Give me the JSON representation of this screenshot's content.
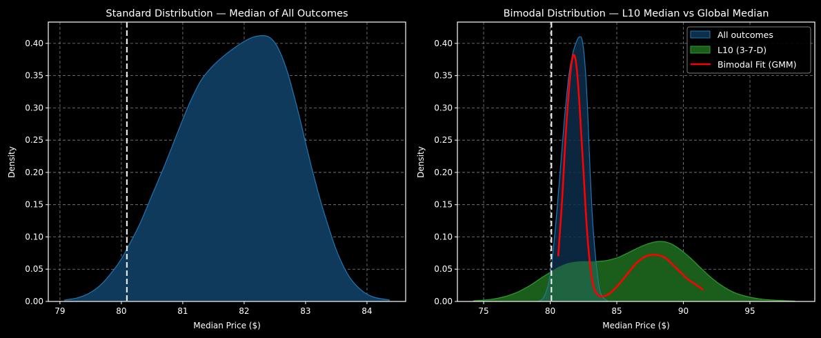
{
  "chart_data": [
    {
      "type": "area",
      "title": "Standard Distribution — Median of All Outcomes",
      "xlabel": "Median Price ($)",
      "ylabel": "Density",
      "xlim": [
        78.81,
        84.63
      ],
      "ylim": [
        0,
        0.433
      ],
      "xticks": [
        "79",
        "80",
        "81",
        "82",
        "83",
        "84"
      ],
      "xtick_values": [
        79,
        80,
        81,
        82,
        83,
        84
      ],
      "yticks": [
        "0.00",
        "0.05",
        "0.10",
        "0.15",
        "0.20",
        "0.25",
        "0.30",
        "0.35",
        "0.40"
      ],
      "ytick_values": [
        0,
        0.05,
        0.1,
        0.15,
        0.2,
        0.25,
        0.3,
        0.35,
        0.4
      ],
      "grid": true,
      "vline": 80.09,
      "series": [
        {
          "name": "All outcomes",
          "color": "#1f77b4",
          "x": [
            79.07,
            79.3,
            79.5,
            79.7,
            79.9,
            80.0,
            80.1,
            80.3,
            80.5,
            80.7,
            80.9,
            81.1,
            81.3,
            81.5,
            81.7,
            81.9,
            82.0,
            82.1,
            82.2,
            82.3,
            82.4,
            82.5,
            82.6,
            82.7,
            82.8,
            82.9,
            83.0,
            83.1,
            83.2,
            83.3,
            83.5,
            83.7,
            83.9,
            84.1,
            84.37
          ],
          "y": [
            0.002,
            0.006,
            0.014,
            0.029,
            0.052,
            0.066,
            0.083,
            0.12,
            0.165,
            0.21,
            0.258,
            0.305,
            0.343,
            0.366,
            0.383,
            0.397,
            0.403,
            0.408,
            0.411,
            0.412,
            0.41,
            0.401,
            0.383,
            0.357,
            0.323,
            0.286,
            0.246,
            0.207,
            0.171,
            0.138,
            0.08,
            0.04,
            0.018,
            0.007,
            0.002
          ]
        }
      ]
    },
    {
      "type": "area",
      "title": "Bimodal Distribution — L10 Median vs Global Median",
      "xlabel": "Median Price ($)",
      "ylabel": "Density",
      "xlim": [
        73.03,
        99.87
      ],
      "ylim": [
        0,
        0.433
      ],
      "xticks": [
        "75",
        "80",
        "85",
        "90",
        "95"
      ],
      "xtick_values": [
        75,
        80,
        85,
        90,
        95
      ],
      "yticks": [
        "0.00",
        "0.05",
        "0.10",
        "0.15",
        "0.20",
        "0.25",
        "0.30",
        "0.35",
        "0.40"
      ],
      "ytick_values": [
        0,
        0.05,
        0.1,
        0.15,
        0.2,
        0.25,
        0.3,
        0.35,
        0.4
      ],
      "grid": true,
      "vline": 80.09,
      "legend_position": "top-right",
      "series": [
        {
          "name": "L10 (3-7-D)",
          "color": "#2ca02c",
          "fill": "#1b5e1b",
          "x": [
            74.2,
            75.5,
            76.5,
            77.5,
            78.5,
            79.3,
            80.0,
            80.7,
            81.5,
            82.3,
            83.0,
            83.7,
            84.4,
            85.2,
            86.0,
            86.8,
            87.6,
            88.3,
            89.0,
            89.8,
            90.6,
            91.4,
            92.2,
            93.0,
            93.8,
            94.7,
            95.7,
            96.8,
            98.4
          ],
          "y": [
            0.001,
            0.003,
            0.007,
            0.014,
            0.025,
            0.036,
            0.045,
            0.054,
            0.06,
            0.062,
            0.062,
            0.062,
            0.064,
            0.069,
            0.077,
            0.085,
            0.091,
            0.093,
            0.09,
            0.08,
            0.066,
            0.05,
            0.035,
            0.023,
            0.014,
            0.008,
            0.004,
            0.002,
            0.0005
          ]
        },
        {
          "name": "All outcomes",
          "color": "#1f77b4",
          "fill": "#0d2e4a",
          "x": [
            79.07,
            79.5,
            79.9,
            80.2,
            80.5,
            80.8,
            81.1,
            81.4,
            81.7,
            82.0,
            82.2,
            82.4,
            82.6,
            82.8,
            83.0,
            83.2,
            83.5,
            83.8,
            84.37
          ],
          "y": [
            0.0,
            0.006,
            0.03,
            0.075,
            0.14,
            0.215,
            0.29,
            0.35,
            0.385,
            0.404,
            0.41,
            0.405,
            0.37,
            0.3,
            0.2,
            0.12,
            0.05,
            0.012,
            0.0
          ]
        },
        {
          "name": "Bimodal Fit (GMM)",
          "color": "#ff0000",
          "x": [
            80.6,
            80.9,
            81.2,
            81.5,
            81.7,
            81.9,
            82.1,
            82.3,
            82.5,
            82.7,
            82.9,
            83.1,
            83.3,
            83.6,
            84.0,
            84.5,
            85.0,
            85.5,
            86.0,
            86.5,
            87.0,
            87.5,
            88.0,
            88.4,
            88.8,
            89.3,
            89.8,
            90.3,
            90.8,
            91.5
          ],
          "y": [
            0.07,
            0.16,
            0.27,
            0.35,
            0.38,
            0.375,
            0.335,
            0.27,
            0.2,
            0.13,
            0.075,
            0.04,
            0.02,
            0.01,
            0.008,
            0.013,
            0.023,
            0.035,
            0.048,
            0.06,
            0.068,
            0.072,
            0.072,
            0.07,
            0.065,
            0.055,
            0.045,
            0.035,
            0.028,
            0.018
          ]
        }
      ]
    }
  ]
}
